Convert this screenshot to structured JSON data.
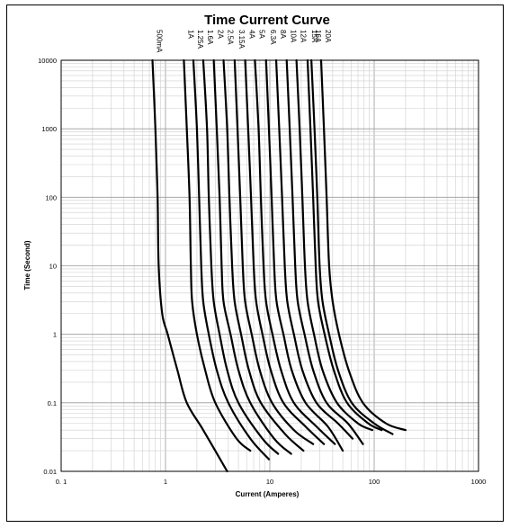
{
  "chart_data": {
    "type": "line",
    "title": "Time Current Curve",
    "xlabel": "Current (Amperes)",
    "ylabel": "Time (Second)",
    "x_scale": "log",
    "y_scale": "log",
    "xlim": [
      0.1,
      1000
    ],
    "ylim": [
      0.01,
      10000
    ],
    "x_tick_labels": [
      "0. 1",
      "1",
      "10",
      "100",
      "1000"
    ],
    "y_tick_labels": [
      "0.01",
      "0.1",
      "1",
      "10",
      "100",
      "1000",
      "10000"
    ],
    "grid": true,
    "series": [
      {
        "name": "500mA",
        "points": [
          [
            0.75,
            10000
          ],
          [
            0.8,
            1000
          ],
          [
            0.84,
            100
          ],
          [
            0.86,
            10
          ],
          [
            0.93,
            2
          ],
          [
            1.05,
            1
          ],
          [
            1.3,
            0.3
          ],
          [
            1.6,
            0.1
          ],
          [
            2.3,
            0.04
          ],
          [
            3.9,
            0.01
          ]
        ]
      },
      {
        "name": "1A",
        "points": [
          [
            1.5,
            10000
          ],
          [
            1.6,
            1000
          ],
          [
            1.7,
            100
          ],
          [
            1.75,
            10
          ],
          [
            1.8,
            3
          ],
          [
            2.0,
            1
          ],
          [
            2.4,
            0.3
          ],
          [
            3.0,
            0.1
          ],
          [
            4.8,
            0.03
          ],
          [
            6.5,
            0.02
          ]
        ]
      },
      {
        "name": "1.25A",
        "points": [
          [
            1.85,
            10000
          ],
          [
            2.0,
            1000
          ],
          [
            2.1,
            100
          ],
          [
            2.2,
            10
          ],
          [
            2.3,
            3
          ],
          [
            2.6,
            1
          ],
          [
            3.1,
            0.3
          ],
          [
            4.0,
            0.1
          ],
          [
            6.5,
            0.03
          ],
          [
            9.8,
            0.015
          ]
        ]
      },
      {
        "name": "1.6A",
        "points": [
          [
            2.3,
            10000
          ],
          [
            2.5,
            1000
          ],
          [
            2.6,
            100
          ],
          [
            2.75,
            10
          ],
          [
            2.9,
            3
          ],
          [
            3.3,
            1
          ],
          [
            3.9,
            0.3
          ],
          [
            5.0,
            0.1
          ],
          [
            8.5,
            0.03
          ],
          [
            12,
            0.018
          ]
        ]
      },
      {
        "name": "2A",
        "points": [
          [
            2.9,
            10000
          ],
          [
            3.1,
            1000
          ],
          [
            3.3,
            100
          ],
          [
            3.45,
            10
          ],
          [
            3.6,
            3
          ],
          [
            4.2,
            1
          ],
          [
            5.0,
            0.3
          ],
          [
            6.5,
            0.1
          ],
          [
            11,
            0.03
          ],
          [
            16,
            0.018
          ]
        ]
      },
      {
        "name": "2.5A",
        "points": [
          [
            3.6,
            10000
          ],
          [
            3.9,
            1000
          ],
          [
            4.1,
            100
          ],
          [
            4.35,
            10
          ],
          [
            4.6,
            3
          ],
          [
            5.3,
            1
          ],
          [
            6.3,
            0.3
          ],
          [
            8.2,
            0.1
          ],
          [
            14,
            0.035
          ],
          [
            21,
            0.02
          ]
        ]
      },
      {
        "name": "3.15A",
        "points": [
          [
            4.6,
            10000
          ],
          [
            4.9,
            1000
          ],
          [
            5.2,
            100
          ],
          [
            5.5,
            10
          ],
          [
            5.8,
            3
          ],
          [
            6.7,
            1
          ],
          [
            8.0,
            0.3
          ],
          [
            10.5,
            0.1
          ],
          [
            17,
            0.04
          ],
          [
            26,
            0.025
          ]
        ]
      },
      {
        "name": "4A",
        "points": [
          [
            5.8,
            10000
          ],
          [
            6.2,
            1000
          ],
          [
            6.6,
            100
          ],
          [
            7.0,
            10
          ],
          [
            7.4,
            3
          ],
          [
            8.5,
            1
          ],
          [
            10.2,
            0.3
          ],
          [
            13.5,
            0.1
          ],
          [
            22,
            0.045
          ],
          [
            33,
            0.025
          ]
        ]
      },
      {
        "name": "5A",
        "points": [
          [
            7.2,
            10000
          ],
          [
            7.8,
            1000
          ],
          [
            8.2,
            100
          ],
          [
            8.7,
            10
          ],
          [
            9.2,
            3
          ],
          [
            10.6,
            1
          ],
          [
            12.8,
            0.3
          ],
          [
            17,
            0.1
          ],
          [
            28,
            0.045
          ],
          [
            42,
            0.025
          ]
        ]
      },
      {
        "name": "6.3A",
        "points": [
          [
            9.2,
            10000
          ],
          [
            9.8,
            1000
          ],
          [
            10.4,
            100
          ],
          [
            11,
            10
          ],
          [
            11.6,
            3
          ],
          [
            13.5,
            1
          ],
          [
            16.2,
            0.3
          ],
          [
            22,
            0.1
          ],
          [
            36,
            0.045
          ],
          [
            50,
            0.02
          ]
        ]
      },
      {
        "name": "8A",
        "points": [
          [
            11.5,
            10000
          ],
          [
            12.3,
            1000
          ],
          [
            13.1,
            100
          ],
          [
            13.9,
            10
          ],
          [
            14.7,
            3
          ],
          [
            17,
            1
          ],
          [
            20.5,
            0.3
          ],
          [
            28,
            0.1
          ],
          [
            45,
            0.05
          ],
          [
            62,
            0.03
          ]
        ]
      },
      {
        "name": "10A",
        "points": [
          [
            14.5,
            10000
          ],
          [
            15.5,
            1000
          ],
          [
            16.5,
            100
          ],
          [
            17.5,
            10
          ],
          [
            18.5,
            3
          ],
          [
            21.5,
            1
          ],
          [
            26,
            0.3
          ],
          [
            35,
            0.1
          ],
          [
            56,
            0.05
          ],
          [
            78,
            0.025
          ]
        ]
      },
      {
        "name": "12A",
        "points": [
          [
            18,
            10000
          ],
          [
            19.3,
            1000
          ],
          [
            20.5,
            100
          ],
          [
            21.7,
            10
          ],
          [
            23,
            3
          ],
          [
            26.5,
            1
          ],
          [
            32,
            0.3
          ],
          [
            44,
            0.1
          ],
          [
            70,
            0.05
          ],
          [
            96,
            0.04
          ]
        ]
      },
      {
        "name": "15A",
        "points": [
          [
            23,
            10000
          ],
          [
            24.5,
            1000
          ],
          [
            26,
            100
          ],
          [
            27.5,
            10
          ],
          [
            29,
            3
          ],
          [
            33.5,
            1
          ],
          [
            41,
            0.3
          ],
          [
            55,
            0.1
          ],
          [
            88,
            0.05
          ],
          [
            118,
            0.04
          ]
        ]
      },
      {
        "name": "16A",
        "points": [
          [
            25,
            10000
          ],
          [
            26.8,
            1000
          ],
          [
            28.5,
            100
          ],
          [
            30,
            10
          ],
          [
            32,
            3
          ],
          [
            37,
            1
          ],
          [
            45,
            0.3
          ],
          [
            61,
            0.1
          ],
          [
            100,
            0.05
          ],
          [
            150,
            0.035
          ]
        ]
      },
      {
        "name": "20A",
        "points": [
          [
            31,
            10000
          ],
          [
            33,
            1000
          ],
          [
            35,
            100
          ],
          [
            37,
            10
          ],
          [
            40,
            3
          ],
          [
            46,
            1
          ],
          [
            57,
            0.3
          ],
          [
            78,
            0.1
          ],
          [
            130,
            0.05
          ],
          [
            200,
            0.04
          ]
        ]
      }
    ]
  }
}
